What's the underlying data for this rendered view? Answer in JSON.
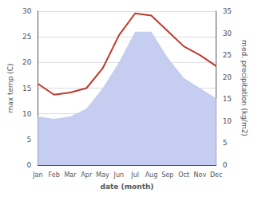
{
  "chart_data": {
    "type": "line",
    "categories": [
      "Jan",
      "Feb",
      "Mar",
      "Apr",
      "May",
      "Jun",
      "Jul",
      "Aug",
      "Sep",
      "Oct",
      "Nov",
      "Dec"
    ],
    "xlabel": "date (month)",
    "ylabel": "max temp (C)",
    "y2label": "med. precipitation (kg/m2)",
    "series": [
      {
        "type": "area",
        "color": "#c5cef0",
        "values": [
          9.5,
          9.0,
          9.5,
          11.0,
          15.0,
          20.0,
          26.0,
          26.0,
          21.0,
          17.0,
          15.0,
          13.0
        ]
      },
      {
        "type": "line",
        "color": "#c0392b",
        "axis": "y2",
        "values": [
          18.5,
          16.0,
          16.5,
          17.5,
          22.0,
          29.5,
          34.5,
          34.0,
          30.5,
          27.0,
          25.0,
          22.5
        ]
      }
    ],
    "ylim": [
      0,
      30
    ],
    "yticks": [
      0,
      5,
      10,
      15,
      20,
      25,
      30
    ],
    "y2lim": [
      0,
      35
    ],
    "y2ticks": [
      0,
      5,
      10,
      15,
      20,
      25,
      30,
      35
    ],
    "grid": true
  }
}
